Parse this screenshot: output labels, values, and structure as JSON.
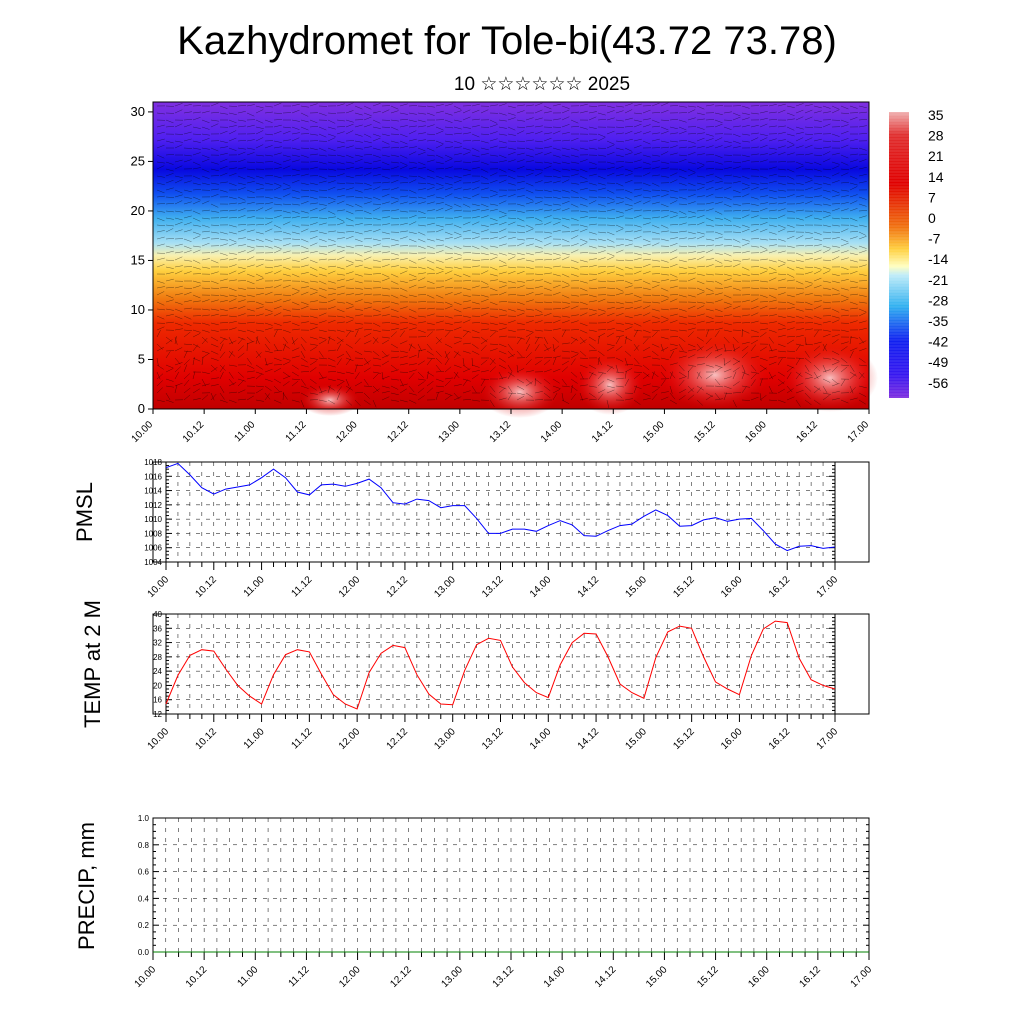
{
  "title": "Kazhydromet for Tole-bi(43.72 73.78)",
  "subtitle": "10 ☆☆☆☆☆☆ 2025",
  "x_tick_labels": [
    "10.00",
    "10.12",
    "11.00",
    "11.12",
    "12.00",
    "12.12",
    "13.00",
    "13.12",
    "14.00",
    "14.12",
    "15.00",
    "15.12",
    "16.00",
    "16.12",
    "17.00"
  ],
  "chart_data": [
    {
      "type": "heatmap",
      "name": "temperature-wind cross section",
      "x_ticks": [
        "10.00",
        "10.12",
        "11.00",
        "11.12",
        "12.00",
        "12.12",
        "13.00",
        "13.12",
        "14.00",
        "14.12",
        "15.00",
        "15.12",
        "16.00",
        "16.12",
        "17.00"
      ],
      "y_ticks": [
        0,
        5,
        10,
        15,
        20,
        25,
        30
      ],
      "ylim": [
        0,
        31
      ],
      "colorbar_labels": [
        "35",
        "28",
        "21",
        "14",
        "7",
        "0",
        "-7",
        "-14",
        "-21",
        "-28",
        "-35",
        "-42",
        "-49",
        "-56"
      ],
      "colors": {
        "warm_max": "#f0a0a0",
        "warm": "#e00000",
        "orange": "#f07010",
        "yellow": "#ffe040",
        "cyan": "#40c0f0",
        "blue": "#1010f0",
        "violet": "#8030e0"
      }
    },
    {
      "type": "line",
      "ylabel": "PMSL",
      "ylim": [
        1004,
        1018
      ],
      "y_ticks": [
        1004,
        1006,
        1008,
        1010,
        1012,
        1014,
        1016,
        1018
      ],
      "x_ticks": [
        "10.00",
        "10.12",
        "11.00",
        "11.12",
        "12.00",
        "12.12",
        "13.00",
        "13.12",
        "14.00",
        "14.12",
        "15.00",
        "15.12",
        "16.00",
        "16.12",
        "17.00"
      ],
      "series": [
        {
          "color": "#0000ff",
          "values": [
            1017.2,
            1017.8,
            1016.2,
            1014.4,
            1013.5,
            1014.2,
            1014.5,
            1014.8,
            1015.8,
            1017.0,
            1015.8,
            1013.8,
            1013.4,
            1014.8,
            1014.9,
            1014.6,
            1015.0,
            1015.6,
            1014.4,
            1012.3,
            1012.1,
            1012.8,
            1012.6,
            1011.6,
            1011.9,
            1011.9,
            1010.1,
            1008.0,
            1008.0,
            1008.6,
            1008.6,
            1008.3,
            1009.1,
            1009.8,
            1009.2,
            1007.7,
            1007.6,
            1008.4,
            1009.1,
            1009.3,
            1010.4,
            1011.3,
            1010.5,
            1009.0,
            1009.1,
            1009.9,
            1010.2,
            1009.7,
            1010.0,
            1010.1,
            1008.4,
            1006.5,
            1005.6,
            1006.2,
            1006.3,
            1005.9,
            1006.1
          ]
        }
      ]
    },
    {
      "type": "line",
      "ylabel": "TEMP at 2 M",
      "ylim": [
        12,
        40
      ],
      "y_ticks": [
        12,
        16,
        20,
        24,
        28,
        32,
        36,
        40
      ],
      "x_ticks": [
        "10.00",
        "10.12",
        "11.00",
        "11.12",
        "12.00",
        "12.12",
        "13.00",
        "13.12",
        "14.00",
        "14.12",
        "15.00",
        "15.12",
        "16.00",
        "16.12",
        "17.00"
      ],
      "series": [
        {
          "color": "#ff0000",
          "values": [
            14.8,
            22.8,
            28.4,
            30.0,
            29.6,
            24.6,
            20.0,
            17.0,
            14.8,
            23.0,
            28.6,
            30.0,
            29.4,
            23.2,
            17.4,
            14.8,
            13.4,
            23.6,
            29.0,
            31.2,
            30.6,
            23.0,
            17.6,
            14.8,
            14.6,
            24.2,
            31.4,
            33.2,
            32.6,
            25.2,
            20.8,
            18.0,
            16.6,
            25.8,
            32.0,
            34.6,
            34.4,
            28.0,
            20.4,
            18.0,
            16.4,
            27.8,
            35.0,
            36.6,
            36.0,
            28.0,
            21.0,
            19.0,
            17.4,
            28.4,
            35.8,
            38.0,
            37.6,
            27.6,
            21.6,
            20.0,
            19.0
          ]
        }
      ]
    },
    {
      "type": "line",
      "ylabel": "PRECIP, mm",
      "ylim": [
        0.0,
        1.0
      ],
      "y_ticks": [
        "0.0",
        "0.2",
        "0.4",
        "0.6",
        "0.8",
        "1.0"
      ],
      "x_ticks": [
        "10.00",
        "10.12",
        "11.00",
        "11.12",
        "12.00",
        "12.12",
        "13.00",
        "13.12",
        "14.00",
        "14.12",
        "15.00",
        "15.12",
        "16.00",
        "16.12",
        "17.00"
      ],
      "series": [
        {
          "color": "#008000",
          "values": [
            0,
            0,
            0,
            0,
            0,
            0,
            0,
            0,
            0,
            0,
            0,
            0,
            0,
            0,
            0,
            0,
            0,
            0,
            0,
            0,
            0,
            0,
            0,
            0,
            0,
            0,
            0,
            0,
            0,
            0,
            0,
            0,
            0,
            0,
            0,
            0,
            0,
            0,
            0,
            0,
            0,
            0,
            0,
            0,
            0,
            0,
            0,
            0,
            0,
            0,
            0,
            0,
            0,
            0,
            0,
            0,
            0
          ]
        }
      ]
    }
  ]
}
